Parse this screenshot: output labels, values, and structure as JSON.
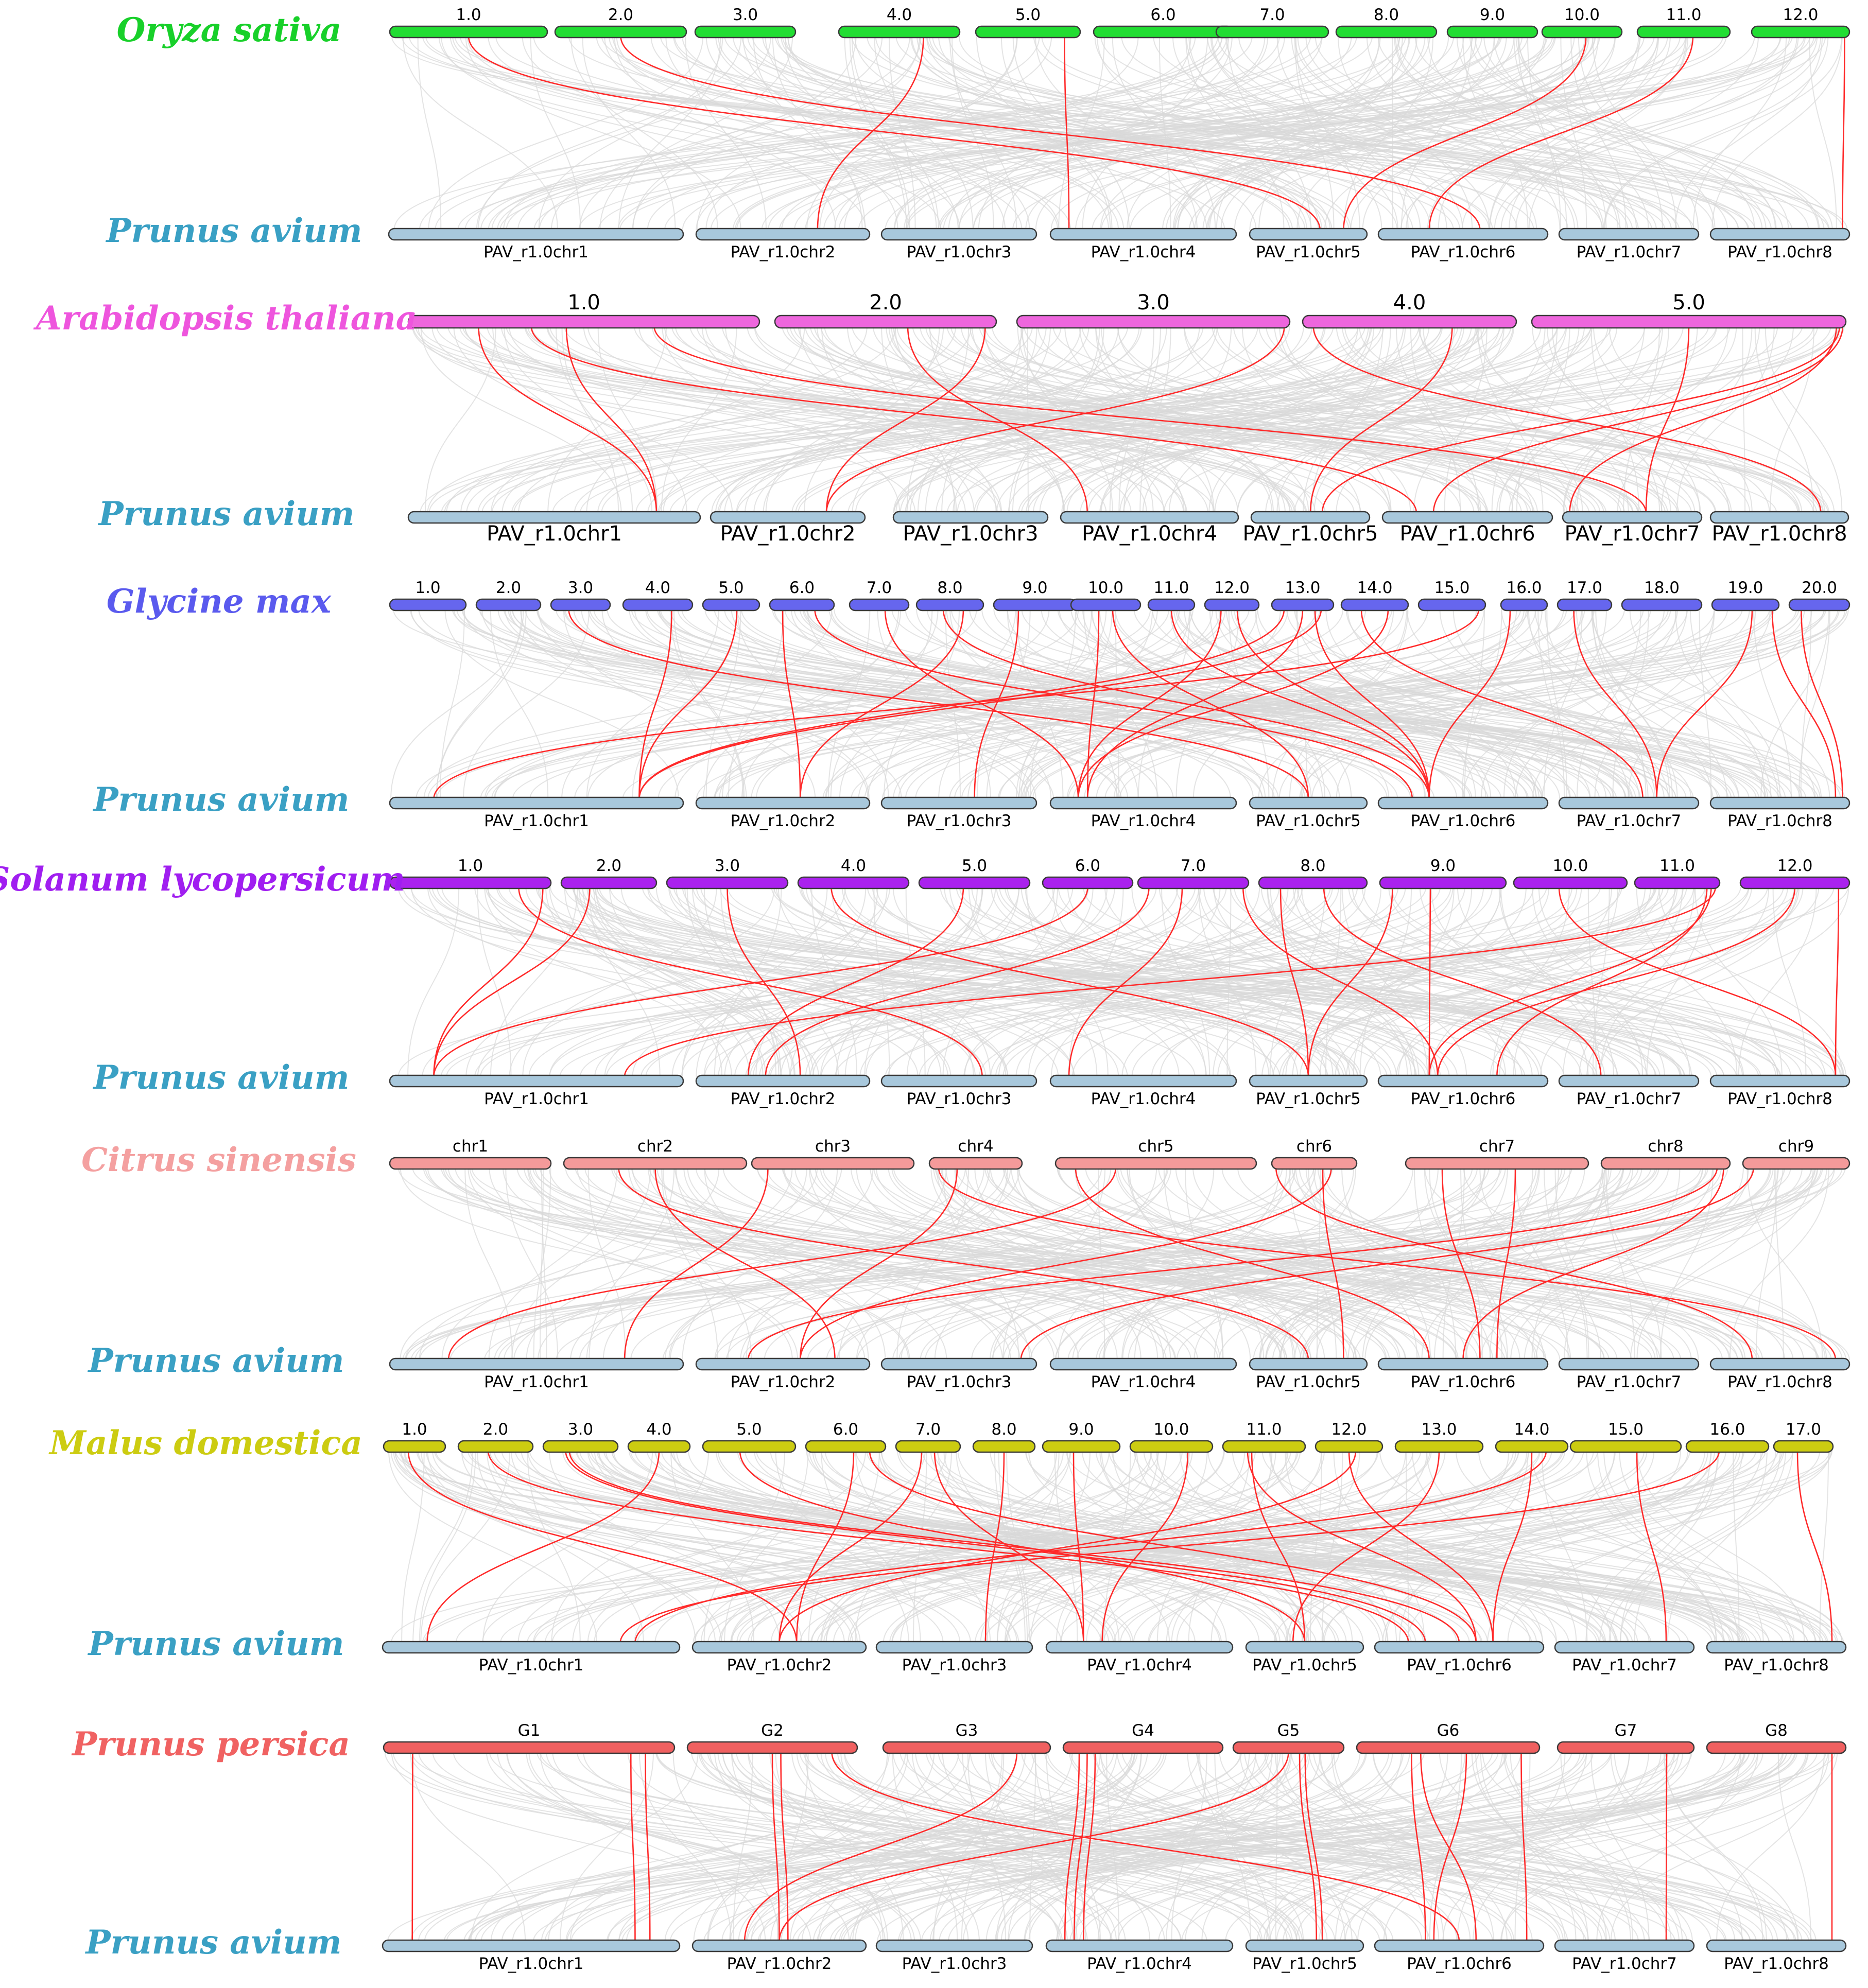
{
  "figure": {
    "reference_species": "Prunus avium",
    "colors": {
      "reference": "#a8c8dc",
      "link_gray": "#d9d9d9",
      "link_red": "#ff2a2a"
    },
    "reference_chromosomes": [
      "PAV_r1.0chr1",
      "PAV_r1.0chr2",
      "PAV_r1.0chr3",
      "PAV_r1.0chr4",
      "PAV_r1.0chr5",
      "PAV_r1.0chr6",
      "PAV_r1.0chr7",
      "PAV_r1.0chr8"
    ]
  },
  "panels": [
    {
      "species": "Oryza sativa",
      "color": "#22dd33",
      "label_color": "#18d02a",
      "chromosomes": [
        "1.0",
        "2.0",
        "3.0",
        "4.0",
        "5.0",
        "6.0",
        "7.0",
        "8.0",
        "9.0",
        "10.0",
        "11.0",
        "12.0"
      ],
      "red_links": [
        [
          0,
          0.5,
          4,
          0.6
        ],
        [
          1,
          0.5,
          5,
          0.6
        ],
        [
          3,
          0.7,
          1,
          0.7
        ],
        [
          4,
          0.85,
          3,
          0.1
        ],
        [
          9,
          0.55,
          4,
          0.8
        ],
        [
          10,
          0.6,
          5,
          0.3
        ],
        [
          11,
          0.95,
          7,
          0.95
        ]
      ]
    },
    {
      "species": "Arabidopsis thaliana",
      "color": "#ee66dd",
      "label_color": "#ee55dd",
      "big_labels": true,
      "chromosomes": [
        "1.0",
        "2.0",
        "3.0",
        "4.0",
        "5.0"
      ],
      "red_links": [
        [
          0,
          0.2,
          0,
          0.85
        ],
        [
          0,
          0.45,
          0,
          0.85
        ],
        [
          0,
          0.7,
          6,
          0.6
        ],
        [
          0,
          0.35,
          5,
          0.2
        ],
        [
          1,
          0.6,
          3,
          0.15
        ],
        [
          1,
          0.95,
          1,
          0.75
        ],
        [
          2,
          0.98,
          1,
          0.75
        ],
        [
          3,
          0.7,
          4,
          0.5
        ],
        [
          3,
          0.05,
          7,
          0.8
        ],
        [
          4,
          0.5,
          6,
          0.6
        ],
        [
          4,
          0.98,
          4,
          0.6
        ],
        [
          4,
          0.99,
          5,
          0.3
        ],
        [
          4,
          0.97,
          6,
          0.05
        ]
      ]
    },
    {
      "species": "Glycine max",
      "color": "#6666ee",
      "label_color": "#5a5aee",
      "chromosomes": [
        "1.0",
        "2.0",
        "3.0",
        "4.0",
        "5.0",
        "6.0",
        "7.0",
        "8.0",
        "9.0",
        "10.0",
        "11.0",
        "12.0",
        "13.0",
        "14.0",
        "15.0",
        "16.0",
        "17.0",
        "18.0",
        "19.0",
        "20.0"
      ],
      "red_links": [
        [
          2,
          0.3,
          4,
          0.5
        ],
        [
          3,
          0.7,
          0,
          0.85
        ],
        [
          4,
          0.6,
          0,
          0.85
        ],
        [
          5,
          0.2,
          1,
          0.6
        ],
        [
          5,
          0.7,
          5,
          0.2
        ],
        [
          6,
          0.6,
          3,
          0.15
        ],
        [
          7,
          0.4,
          5,
          0.3
        ],
        [
          7,
          0.7,
          1,
          0.6
        ],
        [
          8,
          0.3,
          2,
          0.6
        ],
        [
          9,
          0.4,
          3,
          0.2
        ],
        [
          9,
          0.6,
          4,
          0.5
        ],
        [
          10,
          0.5,
          5,
          0.3
        ],
        [
          11,
          0.3,
          3,
          0.15
        ],
        [
          11,
          0.6,
          5,
          0.3
        ],
        [
          12,
          0.2,
          0,
          0.85
        ],
        [
          12,
          0.5,
          3,
          0.2
        ],
        [
          12,
          0.7,
          5,
          0.3
        ],
        [
          12,
          0.8,
          0,
          0.85
        ],
        [
          13,
          0.3,
          6,
          0.6
        ],
        [
          13,
          0.7,
          3,
          0.15
        ],
        [
          14,
          0.9,
          0,
          0.15
        ],
        [
          15,
          0.2,
          5,
          0.3
        ],
        [
          16,
          0.3,
          6,
          0.7
        ],
        [
          18,
          0.6,
          6,
          0.7
        ],
        [
          18,
          0.9,
          7,
          0.9
        ],
        [
          19,
          0.2,
          7,
          0.95
        ]
      ]
    },
    {
      "species": "Solanum lycopersicum",
      "color": "#aa22ee",
      "label_color": "#a01ef0",
      "chromosomes": [
        "1.0",
        "2.0",
        "3.0",
        "4.0",
        "5.0",
        "6.0",
        "7.0",
        "8.0",
        "9.0",
        "10.0",
        "11.0",
        "12.0"
      ],
      "red_links": [
        [
          0,
          0.8,
          2,
          0.65
        ],
        [
          0,
          0.95,
          0,
          0.15
        ],
        [
          1,
          0.3,
          0,
          0.15
        ],
        [
          2,
          0.5,
          1,
          0.6
        ],
        [
          3,
          0.3,
          4,
          0.5
        ],
        [
          4,
          0.4,
          1,
          0.3
        ],
        [
          5,
          0.5,
          0,
          0.15
        ],
        [
          6,
          0.1,
          1,
          0.4
        ],
        [
          6,
          0.4,
          3,
          0.1
        ],
        [
          6,
          0.95,
          5,
          0.35
        ],
        [
          7,
          0.2,
          4,
          0.5
        ],
        [
          7,
          0.6,
          6,
          0.3
        ],
        [
          8,
          0.1,
          4,
          0.5
        ],
        [
          8,
          0.4,
          5,
          0.3
        ],
        [
          9,
          0.4,
          7,
          0.9
        ],
        [
          10,
          0.95,
          0,
          0.8
        ],
        [
          10,
          0.9,
          5,
          0.3
        ],
        [
          10,
          0.85,
          5,
          0.7
        ],
        [
          11,
          0.9,
          7,
          0.9
        ],
        [
          11,
          0.5,
          5,
          0.35
        ]
      ]
    },
    {
      "species": "Citrus sinensis",
      "color": "#f49a9a",
      "label_color": "#f4a0a0",
      "chromosomes": [
        "chr1",
        "chr2",
        "chr3",
        "chr4",
        "chr5",
        "chr6",
        "chr7",
        "chr8",
        "chr9"
      ],
      "red_links": [
        [
          1,
          0.3,
          4,
          0.5
        ],
        [
          1,
          0.5,
          1,
          0.8
        ],
        [
          2,
          0.1,
          0,
          0.8
        ],
        [
          3,
          0.1,
          7,
          0.9
        ],
        [
          3,
          0.3,
          1,
          0.6
        ],
        [
          4,
          0.1,
          5,
          0.3
        ],
        [
          4,
          0.3,
          0,
          0.2
        ],
        [
          5,
          0.05,
          7,
          0.3
        ],
        [
          5,
          0.6,
          4,
          0.8
        ],
        [
          5,
          0.7,
          1,
          0.6
        ],
        [
          6,
          0.2,
          5,
          0.6
        ],
        [
          6,
          0.6,
          5,
          0.7
        ],
        [
          7,
          0.9,
          1,
          0.3
        ],
        [
          7,
          0.95,
          5,
          0.5
        ],
        [
          8,
          0.1,
          2,
          0.9
        ]
      ]
    },
    {
      "species": "Malus domestica",
      "color": "#cccc11",
      "label_color": "#cccc11",
      "chromosomes": [
        "1.0",
        "2.0",
        "3.0",
        "4.0",
        "5.0",
        "6.0",
        "7.0",
        "8.0",
        "9.0",
        "10.0",
        "11.0",
        "12.0",
        "13.0",
        "14.0",
        "15.0",
        "16.0",
        "17.0"
      ],
      "red_links": [
        [
          0,
          0.4,
          1,
          0.6
        ],
        [
          1,
          0.4,
          5,
          0.2
        ],
        [
          2,
          0.3,
          5,
          0.3
        ],
        [
          2,
          0.35,
          5,
          0.5
        ],
        [
          3,
          0.5,
          0,
          0.15
        ],
        [
          4,
          0.4,
          4,
          0.5
        ],
        [
          5,
          0.6,
          1,
          0.6
        ],
        [
          5,
          0.8,
          5,
          0.6
        ],
        [
          6,
          0.4,
          1,
          0.5
        ],
        [
          6,
          0.6,
          3,
          0.2
        ],
        [
          7,
          0.5,
          2,
          0.7
        ],
        [
          8,
          0.4,
          3,
          0.2
        ],
        [
          9,
          0.7,
          3,
          0.3
        ],
        [
          10,
          0.3,
          5,
          0.6
        ],
        [
          10,
          0.35,
          4,
          0.5
        ],
        [
          11,
          0.5,
          5,
          0.7
        ],
        [
          11,
          0.6,
          1,
          0.5
        ],
        [
          12,
          0.5,
          4,
          0.4
        ],
        [
          13,
          0.7,
          0,
          0.85
        ],
        [
          13,
          0.5,
          5,
          0.7
        ],
        [
          14,
          0.6,
          6,
          0.8
        ],
        [
          15,
          0.4,
          0,
          0.8
        ],
        [
          16,
          0.4,
          7,
          0.9
        ]
      ]
    },
    {
      "species": "Prunus persica",
      "color": "#f06060",
      "label_color": "#f06262",
      "chromosomes": [
        "G1",
        "G2",
        "G3",
        "G4",
        "G5",
        "G6",
        "G7",
        "G8"
      ],
      "red_links": [
        [
          0,
          0.1,
          0,
          0.1
        ],
        [
          0,
          0.85,
          0,
          0.85
        ],
        [
          0,
          0.9,
          0,
          0.9
        ],
        [
          1,
          0.5,
          1,
          0.5
        ],
        [
          1,
          0.55,
          1,
          0.55
        ],
        [
          1,
          0.85,
          5,
          0.5
        ],
        [
          2,
          0.8,
          1,
          0.3
        ],
        [
          3,
          0.1,
          3,
          0.1
        ],
        [
          3,
          0.15,
          3,
          0.15
        ],
        [
          3,
          0.2,
          3,
          0.2
        ],
        [
          4,
          0.6,
          4,
          0.6
        ],
        [
          4,
          0.65,
          4,
          0.65
        ],
        [
          4,
          0.5,
          1,
          0.5
        ],
        [
          5,
          0.3,
          5,
          0.3
        ],
        [
          5,
          0.35,
          5,
          0.6
        ],
        [
          5,
          0.6,
          5,
          0.35
        ],
        [
          5,
          0.9,
          5,
          0.9
        ],
        [
          6,
          0.8,
          6,
          0.8
        ],
        [
          7,
          0.9,
          7,
          0.9
        ]
      ]
    }
  ]
}
